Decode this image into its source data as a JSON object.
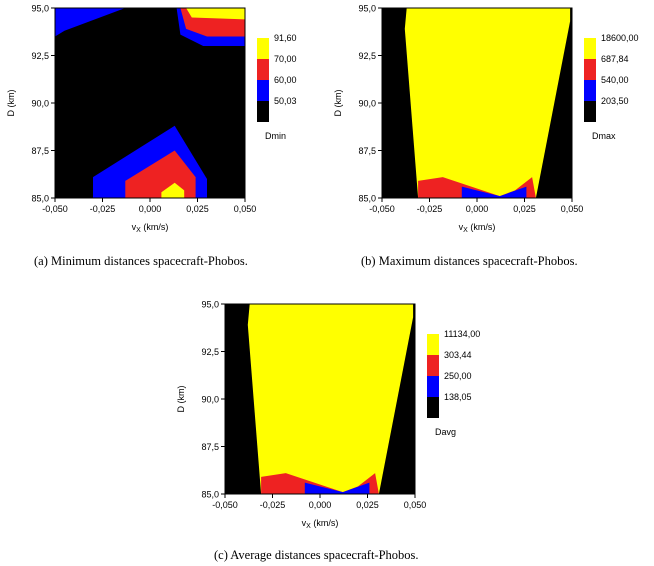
{
  "chart_data": [
    {
      "type": "contour",
      "panel": "a",
      "caption": "(a) Minimum distances spacecraft-Phobos.",
      "xlabel": "vX (km/s)",
      "xlabel_main": "v",
      "xlabel_sub": "X",
      "xlabel_unit": " (km/s)",
      "ylabel": "D (km)",
      "xlim": [
        -0.05,
        0.05
      ],
      "ylim": [
        85.0,
        95.0
      ],
      "xticks": [
        "-0,050",
        "-0,025",
        "0,000",
        "0,025",
        "0,050"
      ],
      "yticks": [
        "85,0",
        "87,5",
        "90,0",
        "92,5",
        "95,0"
      ],
      "legend_title": "Dmin",
      "legend_levels": [
        "91,60",
        "70,00",
        "60,00",
        "50,03"
      ],
      "level_colors": [
        "#ffff00",
        "#ee2222",
        "#0000ff",
        "#000000"
      ],
      "background_level": "#000000",
      "regions": [
        {
          "level": 2,
          "points": [
            [
              -0.05,
              95.0
            ],
            [
              -0.013,
              95.0
            ],
            [
              -0.045,
              93.8
            ],
            [
              -0.05,
              93.5
            ]
          ]
        },
        {
          "level": 2,
          "points": [
            [
              0.014,
              95.0
            ],
            [
              0.05,
              95.0
            ],
            [
              0.05,
              93.0
            ],
            [
              0.028,
              93.0
            ],
            [
              0.016,
              93.6
            ]
          ]
        },
        {
          "level": 1,
          "points": [
            [
              0.016,
              95.0
            ],
            [
              0.05,
              95.0
            ],
            [
              0.05,
              93.5
            ],
            [
              0.03,
              93.5
            ],
            [
              0.019,
              93.9
            ]
          ]
        },
        {
          "level": 0,
          "points": [
            [
              0.019,
              95.0
            ],
            [
              0.05,
              95.0
            ],
            [
              0.05,
              94.4
            ],
            [
              0.022,
              94.5
            ]
          ]
        },
        {
          "level": 2,
          "points": [
            [
              -0.03,
              85.0
            ],
            [
              0.03,
              85.0
            ],
            [
              0.03,
              86.0
            ],
            [
              0.013,
              88.8
            ],
            [
              -0.03,
              86.1
            ]
          ]
        },
        {
          "level": 1,
          "points": [
            [
              -0.013,
              85.0
            ],
            [
              0.024,
              85.0
            ],
            [
              0.024,
              86.1
            ],
            [
              0.013,
              87.5
            ],
            [
              -0.013,
              85.9
            ]
          ]
        },
        {
          "level": 0,
          "points": [
            [
              0.006,
              85.0
            ],
            [
              0.018,
              85.0
            ],
            [
              0.018,
              85.4
            ],
            [
              0.013,
              85.8
            ],
            [
              0.006,
              85.3
            ]
          ]
        }
      ]
    },
    {
      "type": "contour",
      "panel": "b",
      "caption": "(b) Maximum distances spacecraft-Phobos.",
      "xlabel": "vX (km/s)",
      "xlabel_main": "v",
      "xlabel_sub": "X",
      "xlabel_unit": " (km/s)",
      "ylabel": "D (km)",
      "xlim": [
        -0.05,
        0.05
      ],
      "ylim": [
        85.0,
        95.0
      ],
      "xticks": [
        "-0,050",
        "-0,025",
        "0,000",
        "0,025",
        "0,050"
      ],
      "yticks": [
        "85,0",
        "87,5",
        "90,0",
        "92,5",
        "95,0"
      ],
      "legend_title": "Dmax",
      "legend_levels": [
        "18600,00",
        "687,84",
        "540,00",
        "203,50"
      ],
      "level_colors": [
        "#ffff00",
        "#ee2222",
        "#0000ff",
        "#000000"
      ],
      "background_level": "#000000",
      "regions": [
        {
          "level": 0,
          "points": [
            [
              -0.037,
              95.0
            ],
            [
              0.049,
              95.0
            ],
            [
              0.049,
              94.3
            ],
            [
              0.031,
              85.0
            ],
            [
              -0.031,
              85.0
            ],
            [
              -0.038,
              93.9
            ]
          ]
        },
        {
          "level": 1,
          "points": [
            [
              -0.031,
              85.0
            ],
            [
              0.031,
              85.0
            ],
            [
              0.029,
              86.1
            ],
            [
              0.02,
              85.4
            ],
            [
              0.012,
              85.1
            ],
            [
              -0.018,
              86.1
            ],
            [
              -0.031,
              85.9
            ]
          ]
        },
        {
          "level": 2,
          "points": [
            [
              -0.008,
              85.0
            ],
            [
              0.026,
              85.0
            ],
            [
              0.026,
              85.6
            ],
            [
              0.012,
              85.1
            ],
            [
              -0.008,
              85.6
            ]
          ]
        }
      ]
    },
    {
      "type": "contour",
      "panel": "c",
      "caption": "(c) Average distances spacecraft-Phobos.",
      "xlabel": "vX (km/s)",
      "xlabel_main": "v",
      "xlabel_sub": "X",
      "xlabel_unit": " (km/s)",
      "ylabel": "D (km)",
      "xlim": [
        -0.05,
        0.05
      ],
      "ylim": [
        85.0,
        95.0
      ],
      "xticks": [
        "-0,050",
        "-0,025",
        "0,000",
        "0,025",
        "0,050"
      ],
      "yticks": [
        "85,0",
        "87,5",
        "90,0",
        "92,5",
        "95,0"
      ],
      "legend_title": "Davg",
      "legend_levels": [
        "11134,00",
        "303,44",
        "250,00",
        "138,05"
      ],
      "level_colors": [
        "#ffff00",
        "#ee2222",
        "#0000ff",
        "#000000"
      ],
      "background_level": "#000000",
      "regions": [
        {
          "level": 0,
          "points": [
            [
              -0.037,
              95.0
            ],
            [
              0.049,
              95.0
            ],
            [
              0.049,
              94.3
            ],
            [
              0.031,
              85.0
            ],
            [
              -0.031,
              85.0
            ],
            [
              -0.038,
              93.9
            ]
          ]
        },
        {
          "level": 1,
          "points": [
            [
              -0.031,
              85.0
            ],
            [
              0.031,
              85.0
            ],
            [
              0.029,
              86.1
            ],
            [
              0.02,
              85.4
            ],
            [
              0.012,
              85.1
            ],
            [
              -0.018,
              86.1
            ],
            [
              -0.031,
              85.9
            ]
          ]
        },
        {
          "level": 2,
          "points": [
            [
              -0.008,
              85.0
            ],
            [
              0.026,
              85.0
            ],
            [
              0.026,
              85.6
            ],
            [
              0.012,
              85.1
            ],
            [
              -0.008,
              85.6
            ]
          ]
        }
      ]
    }
  ]
}
